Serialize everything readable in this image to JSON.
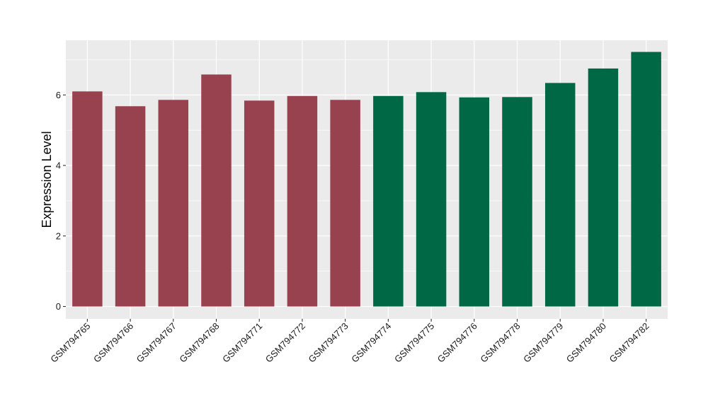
{
  "chart_data": {
    "type": "bar",
    "ylabel": "Expression Level",
    "xlabel": "",
    "categories": [
      "GSM794765",
      "GSM794766",
      "GSM794767",
      "GSM794768",
      "GSM794771",
      "GSM794772",
      "GSM794773",
      "GSM794774",
      "GSM794775",
      "GSM794776",
      "GSM794778",
      "GSM794779",
      "GSM794780",
      "GSM794782"
    ],
    "values": [
      6.1,
      5.68,
      5.86,
      6.58,
      5.84,
      5.97,
      5.86,
      5.97,
      6.08,
      5.93,
      5.94,
      6.34,
      6.75,
      7.22
    ],
    "groups": [
      1,
      1,
      1,
      1,
      1,
      1,
      1,
      2,
      2,
      2,
      2,
      2,
      2,
      2
    ],
    "group_colors": {
      "1": "#99424f",
      "2": "#006845"
    },
    "ylim": [
      -0.35,
      7.55
    ],
    "yticks": [
      0,
      2,
      4,
      6
    ],
    "grid": true,
    "panel_background": "#ebebeb",
    "grid_color": "#ffffff"
  }
}
